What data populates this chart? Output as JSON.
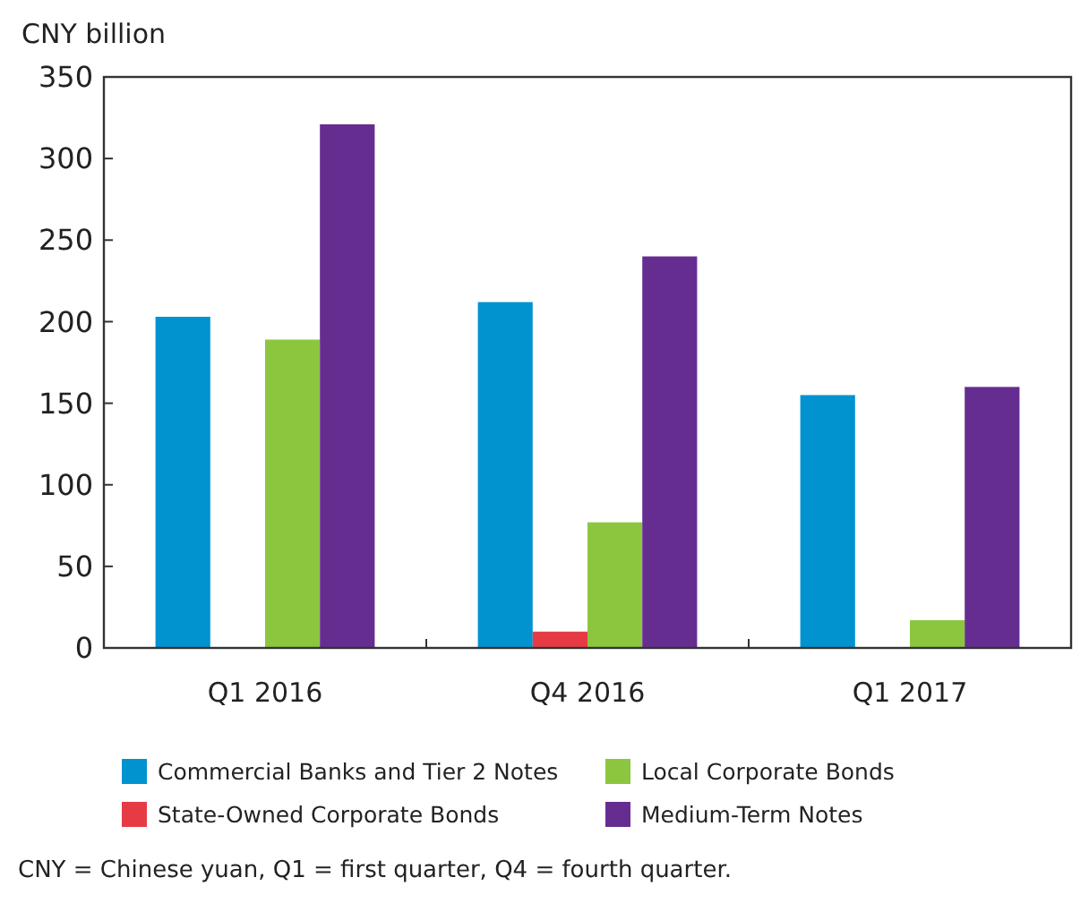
{
  "chart_data": {
    "type": "bar",
    "ylabel": "CNY billion",
    "categories": [
      "Q1 2016",
      "Q4 2016",
      "Q1 2017"
    ],
    "series": [
      {
        "name": "Commercial Banks and Tier 2 Notes",
        "color": "#0093d0",
        "values": [
          203,
          212,
          155
        ]
      },
      {
        "name": "State-Owned Corporate Bonds",
        "color": "#e63b45",
        "values": [
          0,
          10,
          0
        ]
      },
      {
        "name": "Local Corporate Bonds",
        "color": "#8cc63f",
        "values": [
          189,
          77,
          17
        ]
      },
      {
        "name": "Medium-Term Notes",
        "color": "#662d91",
        "values": [
          321,
          240,
          160
        ]
      }
    ],
    "ylim": [
      0,
      350
    ],
    "yticks": [
      0,
      50,
      100,
      150,
      200,
      250,
      300,
      350
    ],
    "grid": false,
    "legend": "bottom",
    "annotations": [
      "CNY = Chinese yuan, Q1 = first quarter, Q4 = fourth quarter."
    ]
  }
}
